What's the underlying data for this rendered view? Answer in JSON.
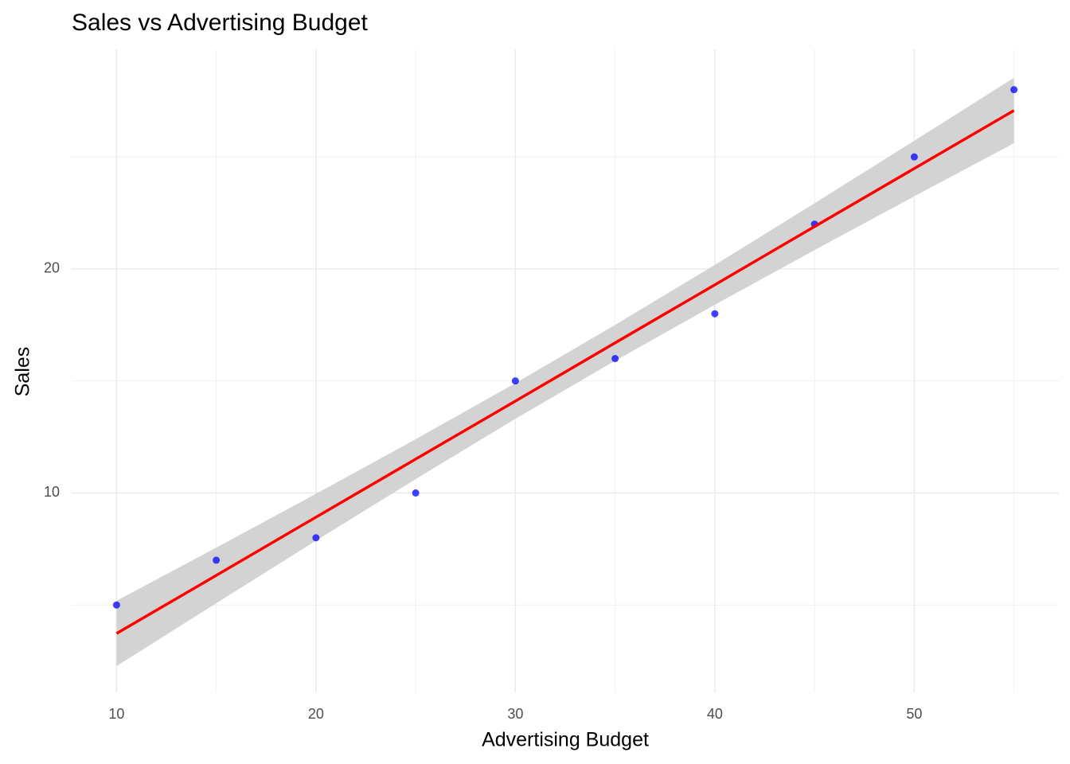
{
  "chart_data": {
    "type": "scatter",
    "title": "Sales vs Advertising Budget",
    "x_label": "Advertising Budget",
    "y_label": "Sales",
    "x": [
      10,
      15,
      20,
      25,
      30,
      35,
      40,
      45,
      50,
      55
    ],
    "values": [
      5,
      7,
      8,
      10,
      15,
      16,
      18,
      22,
      25,
      28
    ],
    "color": "#0000ff",
    "fit": {
      "x": [
        10,
        15,
        20,
        25,
        30,
        35,
        40,
        45,
        50,
        55
      ],
      "values": [
        3.73,
        6.32,
        8.92,
        11.51,
        14.1,
        16.7,
        19.29,
        21.89,
        24.48,
        27.07
      ],
      "lower": [
        2.27,
        5.08,
        7.87,
        10.62,
        13.31,
        15.9,
        18.4,
        20.84,
        23.24,
        25.61
      ],
      "upper": [
        5.19,
        7.56,
        9.96,
        12.4,
        14.9,
        17.5,
        20.18,
        22.93,
        25.72,
        28.53
      ],
      "color": "#ff0000",
      "band_color": "#d3d3d3"
    },
    "xlim": [
      7.75,
      57.25
    ],
    "ylim": [
      1.1,
      29.8
    ],
    "xticks": [
      10,
      20,
      30,
      40,
      50
    ],
    "yticks": [
      10,
      20
    ],
    "minor_xticks": [
      15,
      25,
      35,
      45,
      55
    ],
    "minor_yticks": [
      5,
      15,
      25
    ],
    "grid": true
  }
}
